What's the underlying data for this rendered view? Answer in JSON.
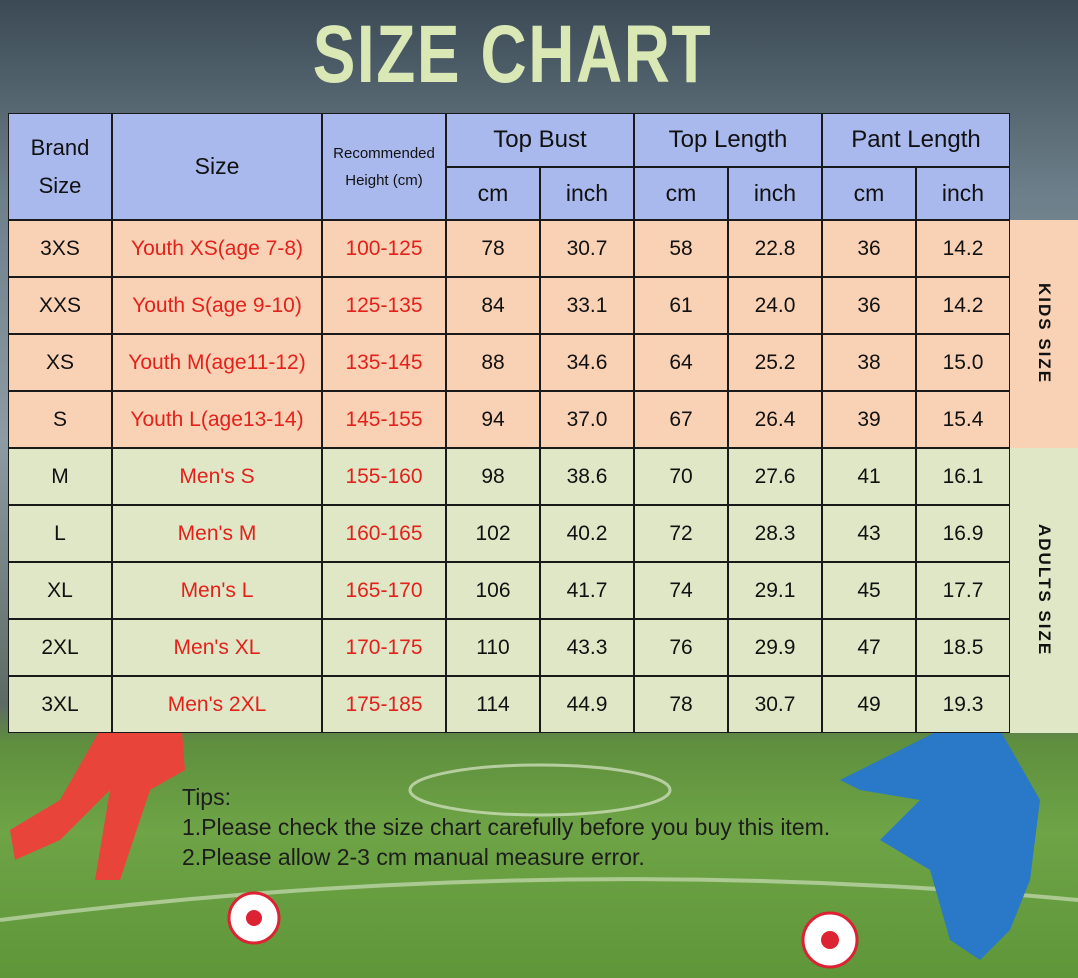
{
  "header": {
    "title": "SIZE CHART"
  },
  "table": {
    "headers": [
      "Brand Size",
      "Size",
      "Recommended Height (cm)",
      "Top Bust",
      "Top Length",
      "Pant Length"
    ],
    "units": [
      "cm",
      "inch",
      "cm",
      "inch",
      "cm",
      "inch"
    ],
    "rows": [
      [
        "3XS",
        "Youth XS(age 7-8)",
        "100-125",
        "78",
        "30.7",
        "58",
        "22.8",
        "36",
        "14.2"
      ],
      [
        "XXS",
        "Youth S(age 9-10)",
        "125-135",
        "84",
        "33.1",
        "61",
        "24.0",
        "36",
        "14.2"
      ],
      [
        "XS",
        "Youth M(age11-12)",
        "135-145",
        "88",
        "34.6",
        "64",
        "25.2",
        "38",
        "15.0"
      ],
      [
        "S",
        "Youth L(age13-14)",
        "145-155",
        "94",
        "37.0",
        "67",
        "26.4",
        "39",
        "15.4"
      ],
      [
        "M",
        "Men's S",
        "155-160",
        "98",
        "38.6",
        "70",
        "27.6",
        "41",
        "16.1"
      ],
      [
        "L",
        "Men's M",
        "160-165",
        "102",
        "40.2",
        "72",
        "28.3",
        "43",
        "16.9"
      ],
      [
        "XL",
        "Men's L",
        "165-170",
        "106",
        "41.7",
        "74",
        "29.1",
        "45",
        "17.7"
      ],
      [
        "2XL",
        "Men's XL",
        "170-175",
        "110",
        "43.3",
        "76",
        "29.9",
        "47",
        "18.5"
      ],
      [
        "3XL",
        "Men's 2XL",
        "175-185",
        "114",
        "44.9",
        "78",
        "30.7",
        "49",
        "19.3"
      ]
    ],
    "side_labels": [
      "KIDS SIZE",
      "ADULTS SIZE"
    ]
  },
  "tips": {
    "title": "Tips:",
    "lines": [
      "1.Please check the size chart carefully before you buy this item.",
      "2.Please allow 2-3 cm manual measure error."
    ]
  }
}
